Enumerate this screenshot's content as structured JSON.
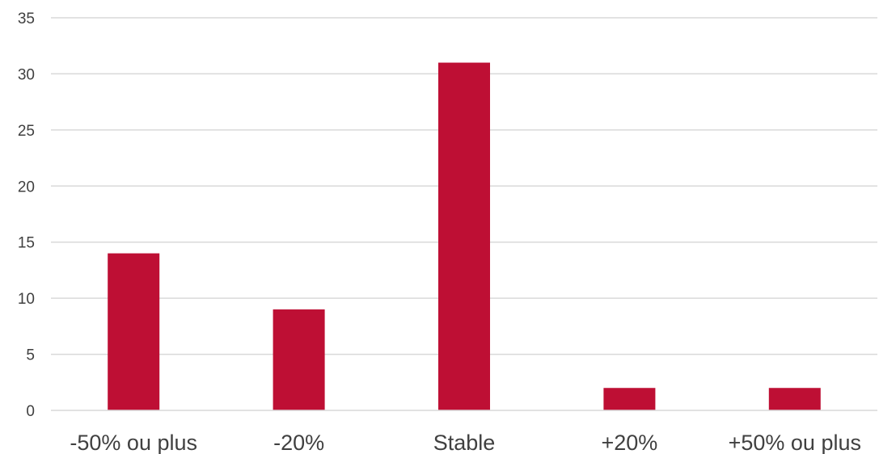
{
  "chart_data": {
    "type": "bar",
    "title": "",
    "xlabel": "",
    "ylabel": "",
    "categories": [
      "-50% ou plus",
      "-20%",
      "Stable",
      "+20%",
      "+50% ou plus"
    ],
    "values": [
      14,
      9,
      31,
      2,
      2
    ],
    "ylim": [
      0,
      35
    ],
    "yticks": [
      0,
      5,
      10,
      15,
      20,
      25,
      30,
      35
    ],
    "y_tick_labels": [
      "0",
      "5",
      "10",
      "15",
      "20",
      "25",
      "30",
      "35"
    ],
    "grid": true,
    "legend": "none",
    "bar_color": "#be0f34"
  }
}
